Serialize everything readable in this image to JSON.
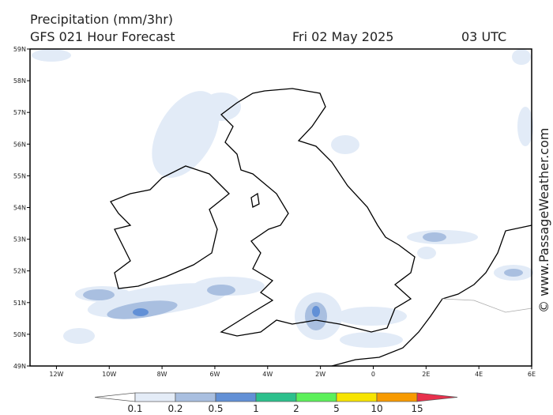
{
  "header": {
    "title": "Precipitation (mm/3hr)",
    "forecast": "GFS 021 Hour Forecast",
    "date": "Fri 02 May 2025",
    "time": "03 UTC"
  },
  "credit": "© www.PassageWeather.com",
  "map": {
    "lat_ticks": [
      {
        "value": 59,
        "label": "59N"
      },
      {
        "value": 58,
        "label": "58N"
      },
      {
        "value": 57,
        "label": "57N"
      },
      {
        "value": 56,
        "label": "56N"
      },
      {
        "value": 55,
        "label": "55N"
      },
      {
        "value": 54,
        "label": "54N"
      },
      {
        "value": 53,
        "label": "53N"
      },
      {
        "value": 52,
        "label": "52N"
      },
      {
        "value": 51,
        "label": "51N"
      },
      {
        "value": 50,
        "label": "50N"
      },
      {
        "value": 49,
        "label": "49N"
      }
    ],
    "lon_ticks": [
      {
        "value": -12,
        "label": "12W"
      },
      {
        "value": -10,
        "label": "10W"
      },
      {
        "value": -8,
        "label": "8W"
      },
      {
        "value": -6,
        "label": "6W"
      },
      {
        "value": -4,
        "label": "4W"
      },
      {
        "value": -2,
        "label": "2W"
      },
      {
        "value": 0,
        "label": "0"
      },
      {
        "value": 2,
        "label": "2E"
      },
      {
        "value": 4,
        "label": "4E"
      },
      {
        "value": 6,
        "label": "6E"
      }
    ]
  },
  "legend": {
    "levels": [
      0.1,
      0.2,
      0.5,
      1,
      2,
      5,
      10,
      15
    ],
    "colors": [
      "#ffffff",
      "#e4ecf7",
      "#a9bfe0",
      "#6290d6",
      "#2cc08c",
      "#5cf05a",
      "#f7e400",
      "#f79a00",
      "#e8304c"
    ]
  }
}
